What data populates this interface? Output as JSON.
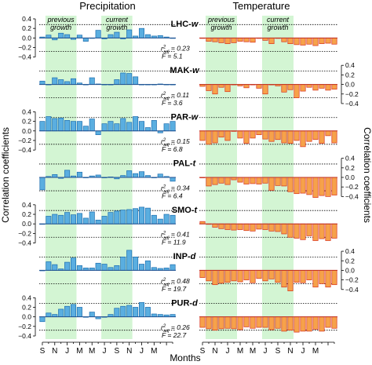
{
  "chart_data": {
    "type": "bar",
    "titles": {
      "left": "Precipitation",
      "right": "Temperature"
    },
    "xlabel": "Months",
    "ylabel_left": "Correlation coefficients",
    "ylabel_right": "Correlation coefficients",
    "x_ticks": [
      "S",
      "N",
      "J",
      "M",
      "M",
      "J",
      "S",
      "N",
      "J",
      "M"
    ],
    "season_labels": {
      "previous": [
        "previous",
        "growth"
      ],
      "current": [
        "current",
        "growth"
      ]
    },
    "shaded_months": [
      [
        1,
        6
      ],
      [
        10,
        15
      ]
    ],
    "y_ticks": [
      "0.4",
      "0.2",
      "0.0",
      "−0.2",
      "−0.4"
    ],
    "ylim": [
      -0.4,
      0.4
    ],
    "significance_line": 0.28,
    "colors": {
      "precip": "#5aaee0",
      "precip_edge": "#1f6fb0",
      "temp": "#f6a24a",
      "temp_edge": "#d9321f",
      "season": "#d3f5d3"
    },
    "stat_labels": {
      "r2": "r",
      "r2_super": "2",
      "r2_sub": "adj",
      "f": "F"
    },
    "panels": [
      {
        "name": "LHC-w",
        "name_main": "LHC-",
        "name_suffix": "w",
        "r2adj": "= 0.23",
        "F": "= 5.1",
        "precip": [
          0.02,
          0.06,
          -0.04,
          0.1,
          0.07,
          -0.03,
          0.06,
          -0.07,
          0.0,
          0.16,
          -0.02,
          0.07,
          0.12,
          -0.02,
          0.17,
          0.04,
          0.2,
          0.07,
          0.04,
          0.05,
          0.02,
          0.0
        ],
        "temp": [
          0.0,
          -0.07,
          -0.08,
          -0.1,
          -0.12,
          -0.1,
          -0.07,
          -0.08,
          -0.09,
          0.0,
          -0.05,
          -0.12,
          0.0,
          -0.08,
          -0.12,
          -0.14,
          -0.15,
          -0.13,
          -0.16,
          -0.12,
          -0.11,
          -0.13
        ]
      },
      {
        "name": "MAK-w",
        "name_main": "MAK-",
        "name_suffix": "w",
        "r2adj": "= 0.11",
        "F": "= 3.6",
        "precip": [
          0.07,
          0.0,
          0.14,
          0.1,
          0.06,
          0.12,
          0.03,
          0.0,
          0.14,
          0.01,
          0.0,
          0.0,
          0.1,
          0.24,
          0.23,
          0.16,
          0.0,
          0.0,
          0.0,
          0.01,
          0.0,
          0.0
        ],
        "temp": [
          -0.04,
          -0.13,
          -0.2,
          -0.06,
          -0.15,
          0.0,
          -0.03,
          -0.07,
          0.0,
          -0.08,
          -0.2,
          0.0,
          -0.03,
          -0.16,
          -0.11,
          -0.28,
          -0.14,
          -0.06,
          -0.12,
          -0.08,
          -0.12,
          -0.1
        ]
      },
      {
        "name": "PAR-w",
        "name_main": "PAR-",
        "name_suffix": "w",
        "r2adj": "= 0.15",
        "F": "= 6.8",
        "precip": [
          0.2,
          0.3,
          0.26,
          0.27,
          0.22,
          0.2,
          0.2,
          0.1,
          0.25,
          -0.08,
          0.15,
          0.2,
          0.15,
          0.26,
          0.18,
          0.3,
          0.2,
          0.07,
          0.22,
          -0.04,
          0.15,
          0.2
        ],
        "temp": [
          -0.2,
          -0.28,
          -0.25,
          -0.13,
          -0.2,
          0.0,
          -0.15,
          -0.26,
          -0.15,
          -0.08,
          -0.17,
          -0.22,
          -0.18,
          -0.25,
          -0.26,
          -0.2,
          -0.33,
          -0.22,
          -0.18,
          -0.26,
          -0.1,
          -0.25
        ]
      },
      {
        "name": "PAL-t",
        "name_main": "PAL-",
        "name_suffix": "t",
        "r2adj": "= 0.34",
        "F": "= 6.4",
        "precip": [
          -0.26,
          0.02,
          0.06,
          -0.02,
          0.15,
          0.03,
          0.11,
          0.0,
          0.03,
          0.05,
          0.0,
          0.01,
          -0.03,
          0.04,
          0.14,
          0.08,
          0.12,
          0.04,
          0.0,
          0.07,
          0.02,
          -0.08
        ],
        "temp": [
          0.0,
          -0.18,
          -0.15,
          -0.12,
          -0.15,
          -0.05,
          -0.1,
          -0.14,
          -0.13,
          -0.14,
          -0.12,
          -0.27,
          -0.17,
          -0.18,
          -0.3,
          -0.34,
          -0.33,
          -0.36,
          -0.42,
          -0.38,
          -0.4,
          -0.37
        ]
      },
      {
        "name": "SMO-t",
        "name_main": "SMO-",
        "name_suffix": "t",
        "r2adj": "= 0.41",
        "F": "= 11.9",
        "precip": [
          0.0,
          0.16,
          0.2,
          0.18,
          0.24,
          0.19,
          0.22,
          0.12,
          0.25,
          0.08,
          0.16,
          0.24,
          0.27,
          0.29,
          0.3,
          0.32,
          0.35,
          0.33,
          0.18,
          0.1,
          0.2,
          0.18
        ],
        "temp": [
          0.05,
          0.0,
          -0.07,
          -0.1,
          -0.12,
          -0.13,
          -0.12,
          -0.14,
          -0.15,
          -0.11,
          -0.12,
          -0.15,
          -0.16,
          -0.21,
          -0.28,
          -0.3,
          -0.33,
          -0.25,
          -0.35,
          -0.31,
          -0.35,
          -0.3
        ]
      },
      {
        "name": "INP-d",
        "name_main": "INP-",
        "name_suffix": "d",
        "r2adj": "= 0.48",
        "F": "= 19.7",
        "precip": [
          0.0,
          0.18,
          0.12,
          0.03,
          0.17,
          0.26,
          0.1,
          0.05,
          0.05,
          0.15,
          0.13,
          0.06,
          0.1,
          0.28,
          0.42,
          0.28,
          0.13,
          0.2,
          0.06,
          0.04,
          0.05,
          0.12
        ],
        "temp": [
          -0.15,
          -0.22,
          -0.3,
          -0.27,
          -0.25,
          -0.22,
          -0.24,
          -0.2,
          -0.26,
          -0.17,
          -0.22,
          -0.18,
          -0.25,
          -0.35,
          -0.43,
          -0.25,
          -0.26,
          -0.2,
          -0.35,
          -0.28,
          -0.35,
          -0.3
        ]
      },
      {
        "name": "PUR-d",
        "name_main": "PUR-",
        "name_suffix": "d",
        "r2adj": "= 0.26",
        "F": "= 22.7",
        "precip": [
          -0.1,
          0.08,
          0.05,
          0.16,
          0.22,
          0.26,
          0.2,
          0.0,
          0.1,
          -0.04,
          0.0,
          0.05,
          0.18,
          0.22,
          0.24,
          0.2,
          0.3,
          0.2,
          0.06,
          0.05,
          0.04,
          0.05
        ],
        "temp": [
          -0.22,
          -0.25,
          -0.28,
          -0.25,
          -0.24,
          -0.25,
          -0.27,
          -0.21,
          -0.24,
          -0.22,
          -0.22,
          -0.27,
          -0.24,
          -0.3,
          -0.28,
          -0.32,
          -0.3,
          -0.3,
          -0.26,
          -0.3,
          -0.22,
          -0.24
        ]
      }
    ]
  }
}
